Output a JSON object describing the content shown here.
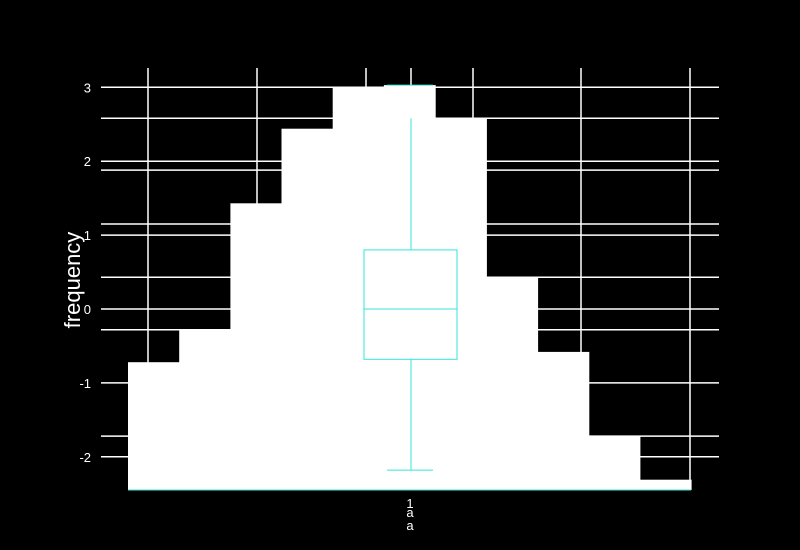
{
  "colors": {
    "background": "#000000",
    "foreground": "#ffffff",
    "boxplot": "#33e6d9"
  },
  "chart_data": {
    "type": "histogram-with-boxplot",
    "ylabel": "frequency",
    "ylim": [
      -2.45,
      3.3
    ],
    "yticks": [
      -2,
      -1,
      0,
      1,
      2,
      3
    ],
    "histogram": {
      "bins": [
        {
          "value": -0.72
        },
        {
          "value": -0.28
        },
        {
          "value": 1.43
        },
        {
          "value": 2.44
        },
        {
          "value": 3.0
        },
        {
          "value": 3.03
        },
        {
          "value": 2.58
        },
        {
          "value": 0.43
        },
        {
          "value": -0.58
        },
        {
          "value": -1.72
        },
        {
          "value": -2.31
        }
      ]
    },
    "extra_gridlines": [
      2.58,
      1.88,
      1.15,
      0.43,
      -0.28,
      -1.72
    ],
    "boxplot": {
      "category_label": "1",
      "sublabels": [
        "a",
        "a"
      ],
      "whisker_low": -2.18,
      "q1": -0.68,
      "median": 0.0,
      "q3": 0.8,
      "whisker_high": 2.58,
      "max": 3.03
    }
  }
}
